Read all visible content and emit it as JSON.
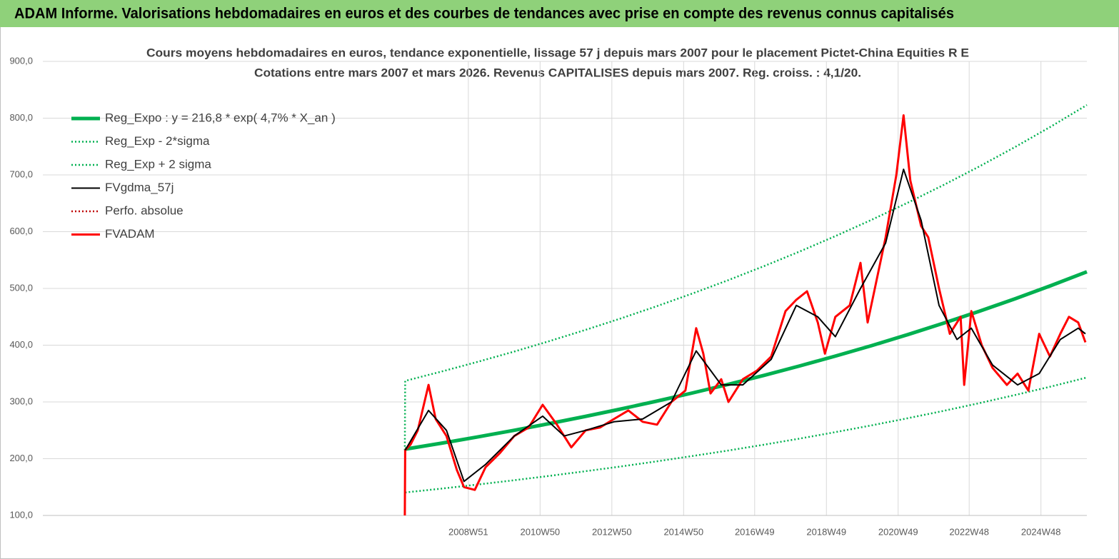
{
  "header": {
    "title": "ADAM Informe. Valorisations hebdomadaires en euros et des courbes de tendances avec prise en compte des revenus connus capitalisés"
  },
  "chart_data": {
    "type": "line",
    "title": "Cours moyens hebdomadaires en euros, tendance exponentielle, lissage 57 j depuis mars 2007 pour le placement Pictet-China Equities R E",
    "subtitle": "Cotations entre mars 2007 et mars 2026. Revenus CAPITALISES depuis mars 2007. Reg. croiss. : 4,1/20.",
    "xlim": [
      1997.1,
      2026.2
    ],
    "xticks": [
      {
        "value": 2008.96,
        "label": "2008W51"
      },
      {
        "value": 2010.96,
        "label": "2010W50"
      },
      {
        "value": 2012.96,
        "label": "2012W50"
      },
      {
        "value": 2014.96,
        "label": "2014W50"
      },
      {
        "value": 2016.94,
        "label": "2016W49"
      },
      {
        "value": 2018.94,
        "label": "2018W49"
      },
      {
        "value": 2020.94,
        "label": "2020W49"
      },
      {
        "value": 2022.92,
        "label": "2022W48"
      },
      {
        "value": 2024.92,
        "label": "2024W48"
      }
    ],
    "ylim": [
      100,
      900
    ],
    "yticks": [
      {
        "value": 100,
        "label": "100,0"
      },
      {
        "value": 200,
        "label": "200,0"
      },
      {
        "value": 300,
        "label": "300,0"
      },
      {
        "value": 400,
        "label": "400,0"
      },
      {
        "value": 500,
        "label": "500,0"
      },
      {
        "value": 600,
        "label": "600,0"
      },
      {
        "value": 700,
        "label": "700,0"
      },
      {
        "value": 800,
        "label": "800,0"
      },
      {
        "value": 900,
        "label": "900,0"
      }
    ],
    "grid": true,
    "legend": "top-left",
    "series": [
      {
        "name": "Reg_Expo : y = 216,8 * exp( 4,7% *  X_an )",
        "color": "#00b050",
        "style": "thick",
        "x": [
          2007.2,
          2008.2,
          2009.2,
          2010.2,
          2011.2,
          2012.2,
          2013.2,
          2014.2,
          2015.2,
          2016.2,
          2017.2,
          2018.2,
          2019.2,
          2020.2,
          2021.2,
          2022.2,
          2023.2,
          2024.2,
          2025.2,
          2026.2
        ],
        "values": [
          216.8,
          227.2,
          238.1,
          249.6,
          261.6,
          274.2,
          287.4,
          301.2,
          315.7,
          330.9,
          346.8,
          363.5,
          381.0,
          399.3,
          418.5,
          438.6,
          459.7,
          481.8,
          505.0,
          529.3
        ]
      },
      {
        "name": "Reg_Exp - 2*sigma",
        "color": "#00b050",
        "style": "dotted",
        "x": [
          2007.2,
          2008.2,
          2009.2,
          2010.2,
          2011.2,
          2012.2,
          2013.2,
          2014.2,
          2015.2,
          2016.2,
          2017.2,
          2018.2,
          2019.2,
          2020.2,
          2021.2,
          2022.2,
          2023.2,
          2024.2,
          2025.2,
          2026.2
        ],
        "values": [
          140.5,
          147.2,
          154.3,
          161.7,
          169.5,
          177.7,
          186.2,
          195.2,
          204.6,
          214.4,
          224.7,
          235.5,
          246.9,
          258.7,
          271.2,
          284.2,
          297.9,
          312.2,
          327.2,
          343.0
        ]
      },
      {
        "name": "Reg_Exp + 2 sigma",
        "color": "#00b050",
        "style": "dotted",
        "x": [
          2007.19,
          2007.2,
          2008.2,
          2009.2,
          2010.2,
          2011.2,
          2012.2,
          2013.2,
          2014.2,
          2015.2,
          2016.2,
          2017.2,
          2018.2,
          2019.2,
          2020.2,
          2021.2,
          2022.2,
          2023.2,
          2024.2,
          2025.2,
          2026.2
        ],
        "values": [
          215,
          337.1,
          353.3,
          370.3,
          388.1,
          406.8,
          426.4,
          446.9,
          468.4,
          490.9,
          514.5,
          539.3,
          565.2,
          592.5,
          620.9,
          650.8,
          682.0,
          714.8,
          749.2,
          785.3,
          823.1
        ]
      },
      {
        "name": "FVgdma_57j",
        "color": "#000000",
        "style": "solid",
        "x": [
          2007.2,
          2007.85,
          2008.35,
          2008.84,
          2009.44,
          2010.24,
          2011.03,
          2011.63,
          2012.23,
          2013.02,
          2013.82,
          2014.62,
          2015.31,
          2016.01,
          2016.61,
          2017.4,
          2018.1,
          2018.7,
          2019.19,
          2019.89,
          2020.59,
          2021.09,
          2021.58,
          2022.08,
          2022.58,
          2022.98,
          2023.57,
          2024.27,
          2024.87,
          2025.46,
          2025.96,
          2026.16
        ],
        "values": [
          215,
          285,
          250,
          160,
          190,
          240,
          275,
          240,
          250,
          265,
          270,
          300,
          390,
          330,
          330,
          375,
          470,
          450,
          415,
          500,
          580,
          710,
          620,
          470,
          410,
          430,
          365,
          330,
          350,
          410,
          430,
          420
        ]
      },
      {
        "name": "Perfo. absolue",
        "color": "#c00000",
        "style": "dotted",
        "x": [],
        "values": []
      },
      {
        "name": "FVADAM",
        "color": "#ff0000",
        "style": "thickred",
        "x": [
          2007.19,
          2007.2,
          2007.35,
          2007.55,
          2007.85,
          2008.05,
          2008.35,
          2008.64,
          2008.84,
          2009.14,
          2009.44,
          2009.84,
          2010.24,
          2010.64,
          2011.03,
          2011.43,
          2011.83,
          2012.23,
          2012.63,
          2013.02,
          2013.42,
          2013.82,
          2014.22,
          2014.62,
          2015.01,
          2015.31,
          2015.51,
          2015.71,
          2016.01,
          2016.21,
          2016.61,
          2017.0,
          2017.4,
          2017.8,
          2018.1,
          2018.4,
          2018.7,
          2018.9,
          2019.19,
          2019.59,
          2019.89,
          2020.09,
          2020.29,
          2020.59,
          2020.89,
          2021.09,
          2021.28,
          2021.58,
          2021.78,
          2022.08,
          2022.38,
          2022.68,
          2022.78,
          2022.98,
          2023.27,
          2023.57,
          2023.97,
          2024.27,
          2024.57,
          2024.87,
          2025.17,
          2025.46,
          2025.7,
          2025.96,
          2026.16
        ],
        "values": [
          100,
          215,
          225,
          250,
          330,
          270,
          240,
          180,
          150,
          145,
          185,
          210,
          240,
          255,
          295,
          260,
          220,
          250,
          255,
          270,
          285,
          265,
          260,
          300,
          320,
          430,
          385,
          315,
          340,
          300,
          340,
          355,
          380,
          460,
          480,
          495,
          440,
          385,
          450,
          470,
          545,
          440,
          500,
          590,
          700,
          805,
          690,
          610,
          590,
          500,
          420,
          450,
          330,
          460,
          400,
          360,
          330,
          350,
          320,
          420,
          380,
          420,
          450,
          440,
          405
        ]
      }
    ]
  }
}
